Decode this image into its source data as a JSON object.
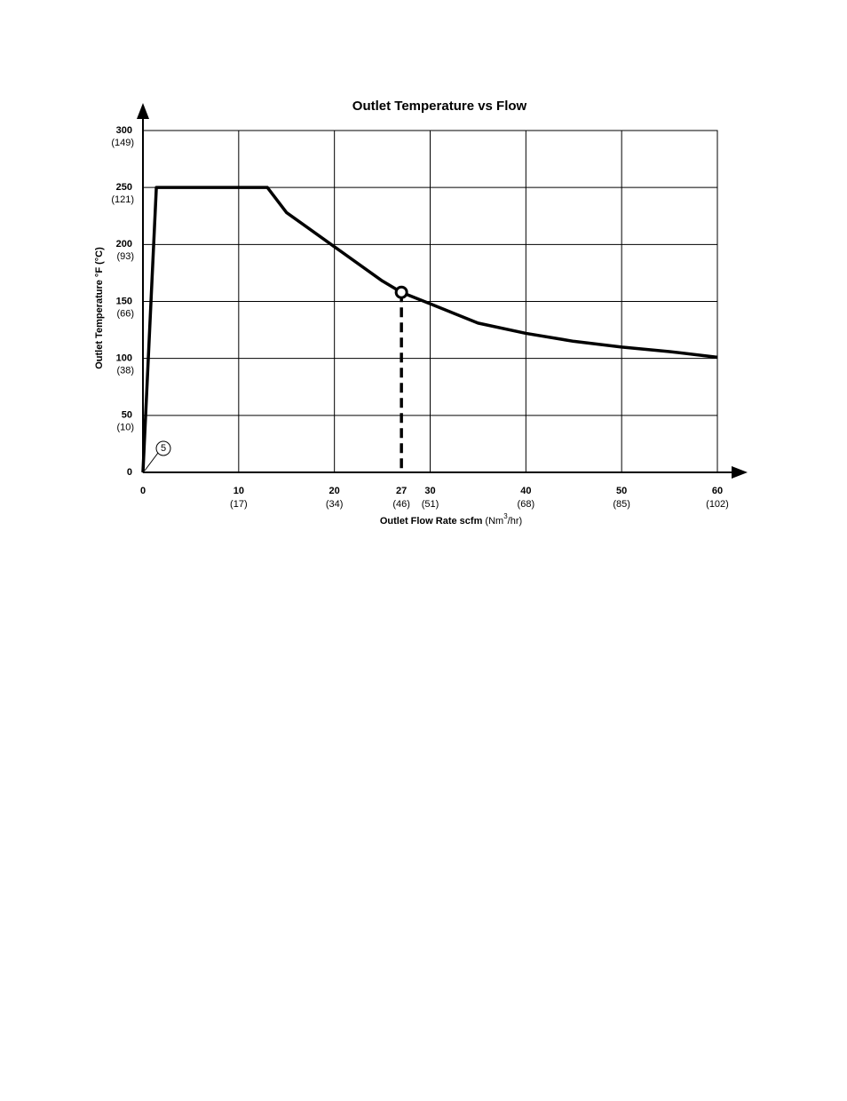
{
  "chart_data": {
    "type": "line",
    "title": "Outlet Temperature vs Flow",
    "x_label": "Outlet Flow Rate scfm",
    "x_unit_parts": [
      "(Nm",
      "3",
      "/hr)"
    ],
    "y_label": "Outlet Temperature °F (°C)",
    "xlim": [
      0,
      60
    ],
    "ylim": [
      0,
      300
    ],
    "xticks": [
      0,
      10,
      20,
      30,
      40,
      50,
      60
    ],
    "x_metric_labels": [
      null,
      "(17)",
      "(34)",
      "(51)",
      "(68)",
      "(85)",
      "(102)"
    ],
    "yticks": [
      0,
      50,
      100,
      150,
      200,
      250,
      300
    ],
    "y_metric_labels": [
      null,
      "(10)",
      "(38)",
      "(66)",
      "(93)",
      "(121)",
      "(149)"
    ],
    "grid": true,
    "series": [
      {
        "color": "#000000",
        "x": [
          0,
          1.4,
          13,
          15,
          20,
          25,
          27,
          30,
          35,
          40,
          45,
          50,
          55,
          60
        ],
        "values": [
          0,
          250,
          250,
          228,
          198,
          168,
          158,
          148,
          131,
          122,
          115,
          110,
          106,
          101
        ]
      }
    ],
    "reference_point": {
      "x": 27,
      "y": 158,
      "x_metric_label": "(46)"
    },
    "callout": "5"
  }
}
